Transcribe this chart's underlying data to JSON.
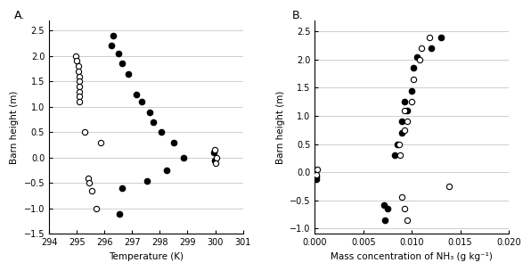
{
  "panel_A": {
    "title": "A.",
    "xlabel": "Temperature (K)",
    "ylabel": "Barn height (m)",
    "xlim": [
      294,
      301
    ],
    "ylim": [
      -1.5,
      2.7
    ],
    "xticks": [
      294,
      295,
      296,
      297,
      298,
      299,
      300,
      301
    ],
    "yticks": [
      -1.5,
      -1.0,
      -0.5,
      0.0,
      0.5,
      1.0,
      1.5,
      2.0,
      2.5
    ],
    "filled_x": [
      296.3,
      296.25,
      296.5,
      296.65,
      296.85,
      297.15,
      297.35,
      297.65,
      297.75,
      298.05,
      298.5,
      298.85,
      299.95,
      299.98,
      296.65,
      296.55,
      297.55,
      298.25
    ],
    "filled_y": [
      2.4,
      2.2,
      2.05,
      1.85,
      1.65,
      1.25,
      1.1,
      0.9,
      0.7,
      0.5,
      0.3,
      0.0,
      0.1,
      -0.05,
      -0.6,
      -1.1,
      -0.45,
      -0.25
    ],
    "open_x": [
      294.98,
      295.0,
      295.05,
      295.05,
      295.08,
      295.08,
      295.08,
      295.1,
      295.1,
      295.1,
      295.3,
      295.85,
      295.4,
      295.45,
      295.55,
      295.7,
      299.98,
      300.05,
      300.02
    ],
    "open_y": [
      2.0,
      1.9,
      1.8,
      1.7,
      1.6,
      1.5,
      1.4,
      1.3,
      1.2,
      1.1,
      0.5,
      0.3,
      -0.4,
      -0.5,
      -0.65,
      -1.0,
      0.15,
      0.0,
      -0.1
    ]
  },
  "panel_B": {
    "title": "B.",
    "xlabel": "Mass concentration of NH₃ (g kg⁻¹)",
    "ylabel": "Barn height (m)",
    "xlim": [
      0.0,
      0.02
    ],
    "ylim": [
      -1.1,
      2.7
    ],
    "xticks": [
      0.0,
      0.005,
      0.01,
      0.015,
      0.02
    ],
    "yticks": [
      -1.0,
      -0.5,
      0.0,
      0.5,
      1.0,
      1.5,
      2.0,
      2.5
    ],
    "filled_x": [
      0.0001,
      0.0001,
      0.0072,
      0.0075,
      0.0071,
      0.0082,
      0.0085,
      0.009,
      0.009,
      0.0095,
      0.0092,
      0.01,
      0.0102,
      0.0105,
      0.012,
      0.013
    ],
    "filled_y": [
      -0.07,
      -0.12,
      -0.85,
      -0.65,
      -0.58,
      0.3,
      0.5,
      0.7,
      0.9,
      1.1,
      1.25,
      1.45,
      1.85,
      2.05,
      2.2,
      2.4
    ],
    "open_x": [
      0.0002,
      0.0001,
      0.0095,
      0.0092,
      0.009,
      0.0088,
      0.0087,
      0.0092,
      0.0095,
      0.0092,
      0.01,
      0.0102,
      0.0108,
      0.011,
      0.0118,
      0.0138
    ],
    "open_y": [
      0.05,
      -0.04,
      -0.85,
      -0.65,
      -0.45,
      0.3,
      0.5,
      0.75,
      0.9,
      1.1,
      1.25,
      1.65,
      2.0,
      2.2,
      2.4,
      -0.25
    ]
  },
  "marker_size": 4.5,
  "filled_color": "#000000",
  "open_color": "#000000",
  "bg_color": "#ffffff",
  "grid_color": "#bbbbbb"
}
